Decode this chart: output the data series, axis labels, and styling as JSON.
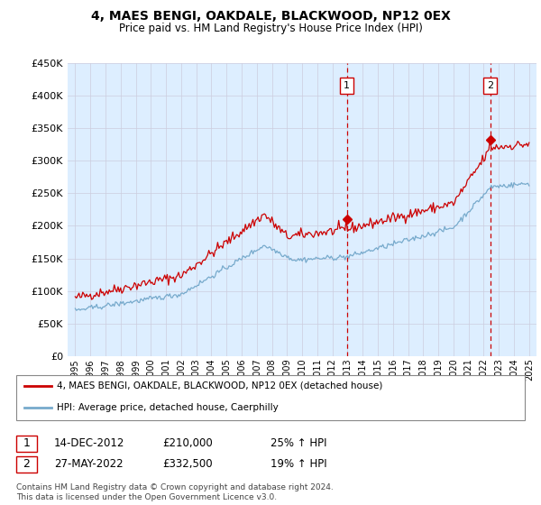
{
  "title": "4, MAES BENGI, OAKDALE, BLACKWOOD, NP12 0EX",
  "subtitle": "Price paid vs. HM Land Registry's House Price Index (HPI)",
  "legend_line1": "4, MAES BENGI, OAKDALE, BLACKWOOD, NP12 0EX (detached house)",
  "legend_line2": "HPI: Average price, detached house, Caerphilly",
  "annotation1": {
    "num": "1",
    "date": "14-DEC-2012",
    "price": "£210,000",
    "pct": "25% ↑ HPI",
    "year": 2012.95
  },
  "annotation2": {
    "num": "2",
    "date": "27-MAY-2022",
    "price": "£332,500",
    "pct": "19% ↑ HPI",
    "year": 2022.42
  },
  "purchase1_val": 210000,
  "purchase2_val": 332500,
  "footnote": "Contains HM Land Registry data © Crown copyright and database right 2024.\nThis data is licensed under the Open Government Licence v3.0.",
  "price_color": "#cc0000",
  "hpi_color": "#77aacc",
  "bg_color": "#ddeeff",
  "ylim": [
    0,
    450000
  ],
  "yticks": [
    0,
    50000,
    100000,
    150000,
    200000,
    250000,
    300000,
    350000,
    400000,
    450000
  ],
  "xlim": [
    1994.5,
    2025.5
  ]
}
